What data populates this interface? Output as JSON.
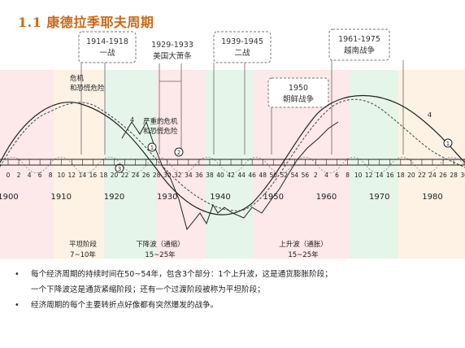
{
  "title": "1.1 康德拉季耶夫周期",
  "events": [
    {
      "id": "ww1",
      "years": "1914-1918",
      "label": "一战"
    },
    {
      "id": "depr",
      "years": "1929-1933",
      "label": "美国大萧条"
    },
    {
      "id": "ww2",
      "years": "1939-1945",
      "label": "二战"
    },
    {
      "id": "korea",
      "years": "1950",
      "label": "朝鲜战争"
    },
    {
      "id": "vietnam",
      "years": "1961-1975",
      "label": "越南战争"
    }
  ],
  "crisis_labels": {
    "c1": [
      "危机",
      "和恐慌危险"
    ],
    "c2": [
      "严重的危机",
      "和恐慌危险"
    ]
  },
  "curve_labels": {
    "four_a": "4",
    "four_b": "4",
    "one_a": "1",
    "two": "2",
    "three": "3",
    "one_b": "1"
  },
  "axis": {
    "ticks": [
      "0",
      "2",
      "4",
      "6",
      "8",
      "10",
      "12",
      "14",
      "16",
      "18",
      "20",
      "22",
      "24",
      "26",
      "28",
      "30",
      "32",
      "34",
      "36",
      "38",
      "40",
      "42",
      "44",
      "46",
      "48",
      "50",
      "52",
      "54",
      "56",
      "2",
      "4",
      "6",
      "8",
      "10",
      "12",
      "14",
      "16",
      "18",
      "20",
      "22",
      "24",
      "26",
      "28",
      "30"
    ],
    "decades": [
      "1900",
      "1910",
      "1920",
      "1930",
      "1940",
      "1950",
      "1960",
      "1970",
      "1980"
    ]
  },
  "phases": [
    {
      "name": "平坦阶段",
      "duration": "7~10年"
    },
    {
      "name": "下降波（通缩）",
      "duration": "15~25年"
    },
    {
      "name": "上升波（通胀）",
      "duration": "15~25年"
    }
  ],
  "bullets": [
    {
      "lines": [
        "每个经济周期的持续时间在50~54年，包含3个部分：1个上升波，这是通货膨胀阶段；",
        "一个下降波这是通货紧缩阶段；还有一个过渡阶段被称为平坦阶段；"
      ]
    },
    {
      "lines": [
        "经济周期的每个主要转折点好像都有突然爆发的战争。"
      ]
    }
  ],
  "colors": {
    "title": "#c8691a",
    "pink": "#fde8ea",
    "green": "#e6f5ea",
    "cream": "#fdf2e4"
  }
}
